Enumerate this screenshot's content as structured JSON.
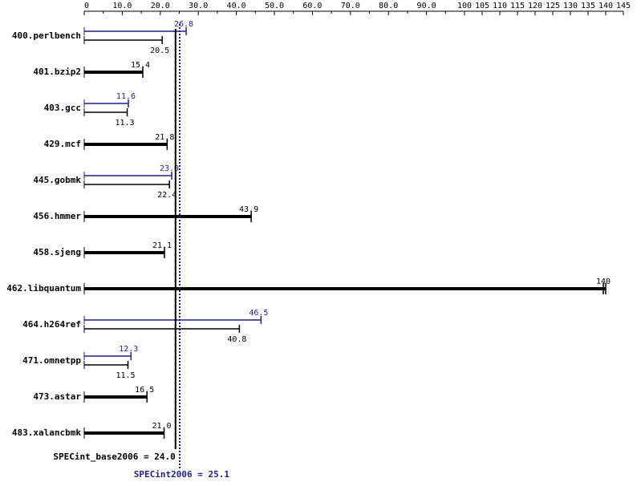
{
  "chart_data": {
    "type": "bar",
    "orientation": "horizontal",
    "axis_ticks": [
      "0",
      "10.0",
      "20.0",
      "30.0",
      "40.0",
      "50.0",
      "60.0",
      "70.0",
      "80.0",
      "90.0",
      "100",
      "105",
      "110",
      "115",
      "120",
      "125",
      "130",
      "135",
      "140",
      "145"
    ],
    "axis_breakpoint": {
      "linear_to": 100,
      "step_after": 5,
      "range_max": 145
    },
    "categories": [
      "400.perlbench",
      "401.bzip2",
      "403.gcc",
      "429.mcf",
      "445.gobmk",
      "456.hmmer",
      "458.sjeng",
      "462.libquantum",
      "464.h264ref",
      "471.omnetpp",
      "473.astar",
      "483.xalancbmk"
    ],
    "series": [
      {
        "name": "SPECint2006",
        "color": "#1f1f8f",
        "values": [
          26.8,
          15.4,
          11.6,
          21.8,
          23.0,
          43.9,
          21.1,
          140,
          46.5,
          12.3,
          16.5,
          21.0
        ]
      },
      {
        "name": "SPECint_base2006",
        "color": "#000000",
        "values": [
          20.5,
          15.4,
          11.3,
          21.8,
          22.4,
          43.9,
          21.1,
          140,
          40.8,
          11.5,
          16.5,
          21.0
        ]
      }
    ],
    "labels": {
      "peak": [
        "26.8",
        "15.4",
        "11.6",
        "",
        "23.0",
        "",
        "",
        "",
        "46.5",
        "12.3",
        "",
        ""
      ],
      "base": [
        "20.5",
        "15.4",
        "11.3",
        "21.8",
        "22.4",
        "43.9",
        "21.1",
        "140",
        "40.8",
        "11.5",
        "16.5",
        "21.0"
      ]
    },
    "reference_lines": [
      {
        "label": "SPECint_base2006 = 24.0",
        "value": 24.0,
        "color": "#000000",
        "style": "solid"
      },
      {
        "label": "SPECint2006 = 25.1",
        "value": 25.1,
        "color": "#1f1f8f",
        "style": "dotted"
      }
    ],
    "grid": false,
    "legend": "none"
  }
}
